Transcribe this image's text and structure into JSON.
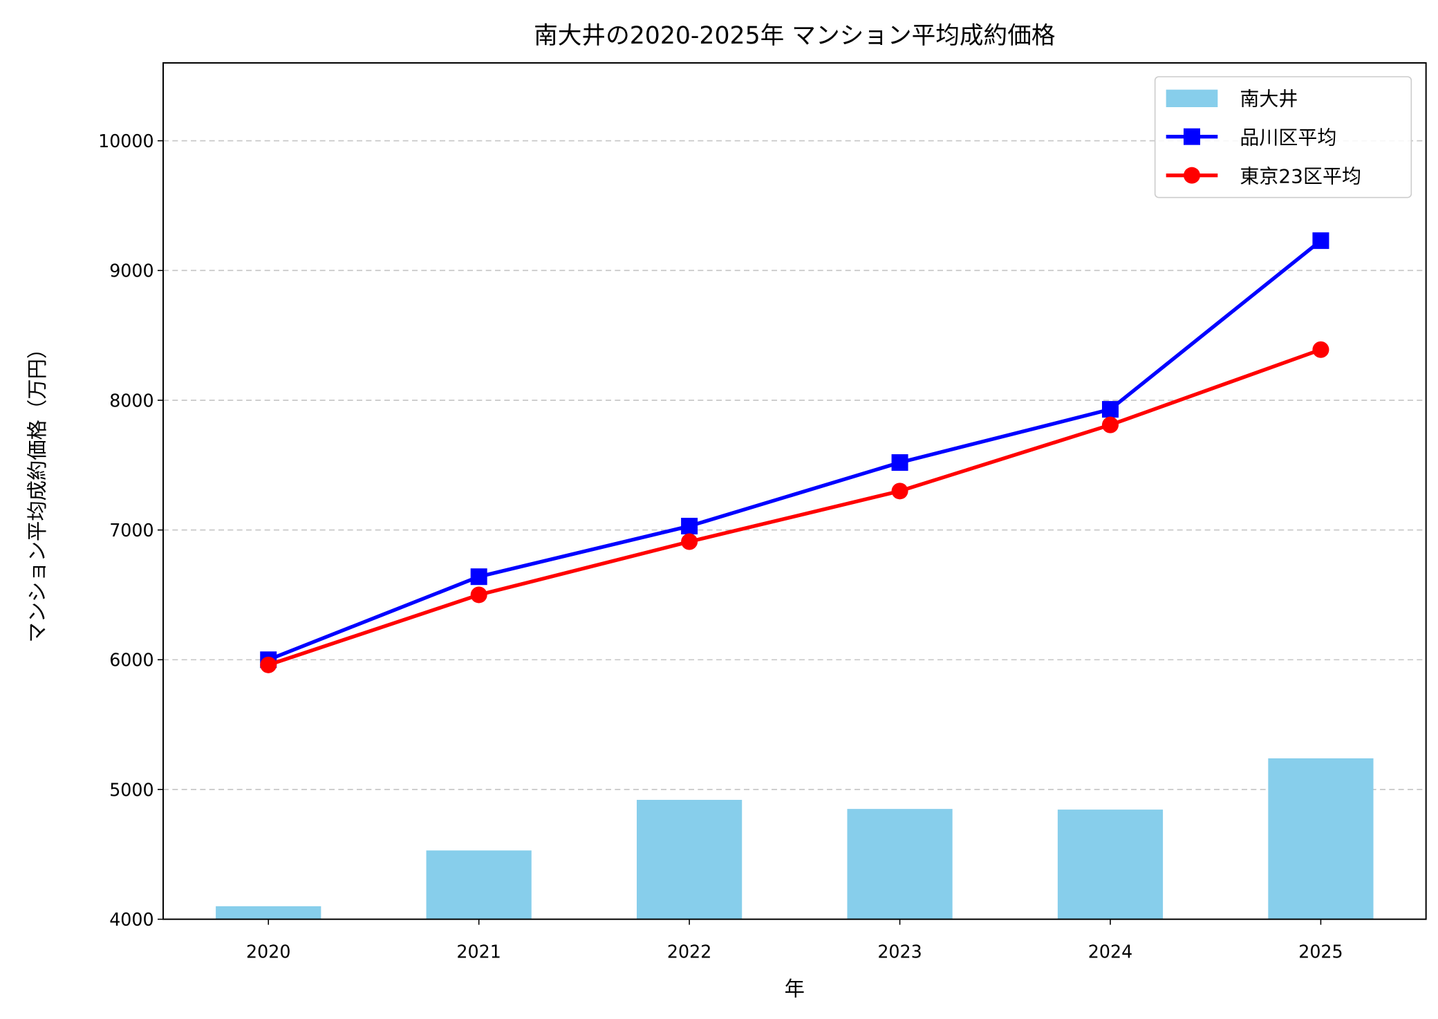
{
  "chart_data": {
    "type": "bar+line",
    "title": "南大井の2020-2025年 マンション平均成約価格",
    "xlabel": "年",
    "ylabel": "マンション平均成約価格（万円）",
    "categories": [
      "2020",
      "2021",
      "2022",
      "2023",
      "2024",
      "2025"
    ],
    "ylim": [
      4000,
      10600
    ],
    "yticks": [
      4000,
      5000,
      6000,
      7000,
      8000,
      9000,
      10000
    ],
    "grid": "y-dashed",
    "legend_placement": "top-right",
    "series": [
      {
        "name": "南大井",
        "kind": "bar",
        "color": "#87CEEB",
        "values": [
          4100,
          4530,
          4920,
          4850,
          4845,
          5240
        ]
      },
      {
        "name": "品川区平均",
        "kind": "line",
        "marker": "square",
        "color": "#0000FF",
        "values": [
          6000,
          6640,
          7030,
          7520,
          7930,
          9230
        ]
      },
      {
        "name": "東京23区平均",
        "kind": "line",
        "marker": "circle",
        "color": "#FF0000",
        "values": [
          5960,
          6500,
          6910,
          7300,
          7810,
          8390
        ]
      }
    ]
  }
}
